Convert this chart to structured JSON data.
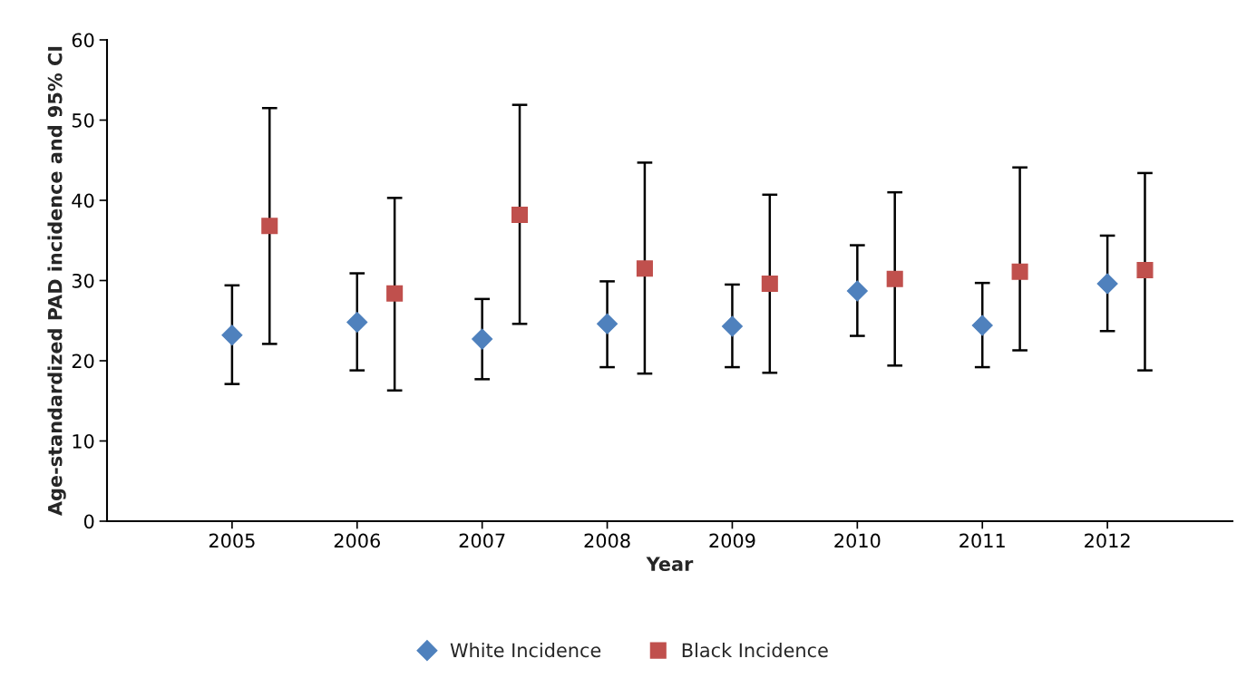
{
  "chart_data": {
    "type": "scatter",
    "xlabel": "Year",
    "ylabel": "Age-standardized PAD incidence and 95% CI",
    "xlim": [
      2004,
      2013
    ],
    "xticks": [
      2005,
      2006,
      2007,
      2008,
      2009,
      2010,
      2011,
      2012
    ],
    "ylim": [
      0,
      60
    ],
    "yticks": [
      0,
      10,
      20,
      30,
      40,
      50,
      60
    ],
    "grid": false,
    "legend": "bottom",
    "series": [
      {
        "name": "White Incidence",
        "color": "#4f81bd",
        "marker": "diamond",
        "x": [
          2005,
          2006,
          2007,
          2008,
          2009,
          2010,
          2011,
          2012
        ],
        "values": [
          23.2,
          24.8,
          22.7,
          24.6,
          24.3,
          28.7,
          24.4,
          29.6
        ],
        "errors": [
          [
            17.1,
            29.4
          ],
          [
            18.8,
            30.9
          ],
          [
            17.7,
            27.7
          ],
          [
            19.2,
            29.9
          ],
          [
            19.2,
            29.5
          ],
          [
            23.1,
            34.4
          ],
          [
            19.2,
            29.7
          ],
          [
            23.7,
            35.6
          ]
        ]
      },
      {
        "name": "Black Incidence",
        "color": "#c0504d",
        "marker": "square",
        "x": [
          2005.3,
          2006.3,
          2007.3,
          2008.3,
          2009.3,
          2010.3,
          2011.3,
          2012.3
        ],
        "values": [
          36.8,
          28.4,
          38.2,
          31.5,
          29.6,
          30.2,
          31.1,
          31.3
        ],
        "errors": [
          [
            22.1,
            51.5
          ],
          [
            16.3,
            40.3
          ],
          [
            24.6,
            51.9
          ],
          [
            18.4,
            44.7
          ],
          [
            18.5,
            40.7
          ],
          [
            19.4,
            41.0
          ],
          [
            21.3,
            44.1
          ],
          [
            18.8,
            43.4
          ]
        ]
      }
    ]
  }
}
